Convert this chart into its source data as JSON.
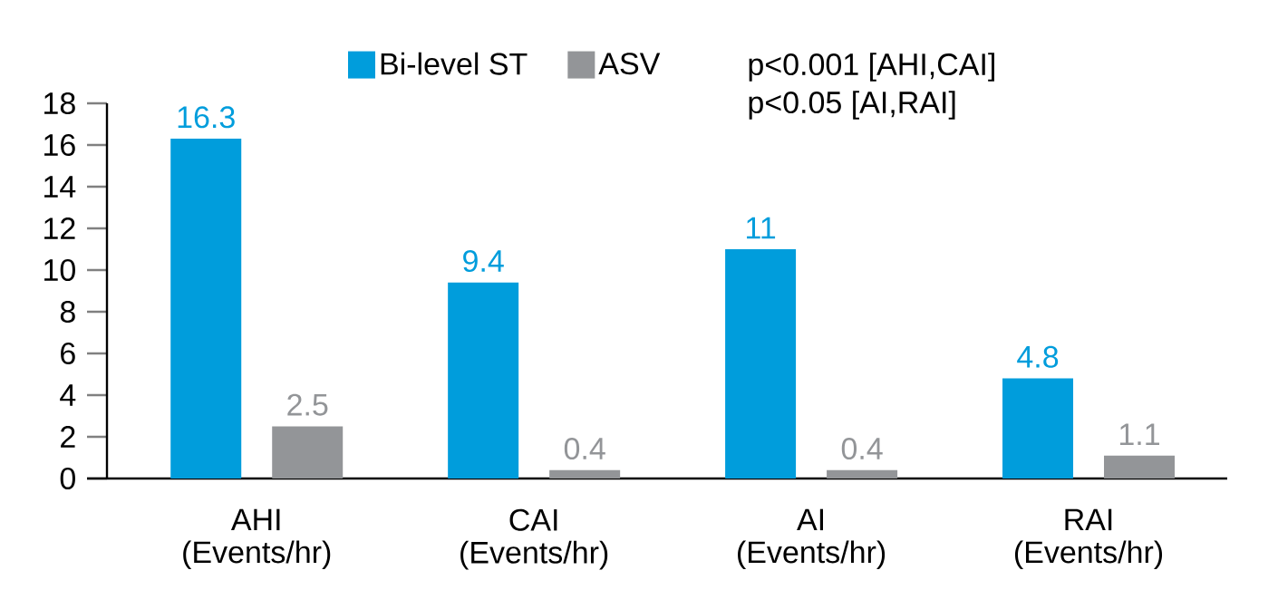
{
  "chart_data": {
    "type": "bar",
    "categories": [
      "AHI (Events/hr)",
      "CAI (Events/hr)",
      "AI (Events/hr)",
      "RAI (Events/hr)"
    ],
    "series": [
      {
        "name": "Bi-level ST",
        "color": "#009ddc",
        "values": [
          16.3,
          9.4,
          11,
          4.8
        ]
      },
      {
        "name": "ASV",
        "color": "#939598",
        "values": [
          2.5,
          0.4,
          0.4,
          1.1
        ]
      }
    ],
    "ylim": [
      0,
      18
    ],
    "yticks": [
      0,
      2,
      4,
      6,
      8,
      10,
      12,
      14,
      16,
      18
    ],
    "data_labels": true,
    "legend": "top",
    "grid": false,
    "annotations": [
      "p<0.001 [AHI,CAI]",
      "p<0.05 [AI,RAI]"
    ]
  }
}
